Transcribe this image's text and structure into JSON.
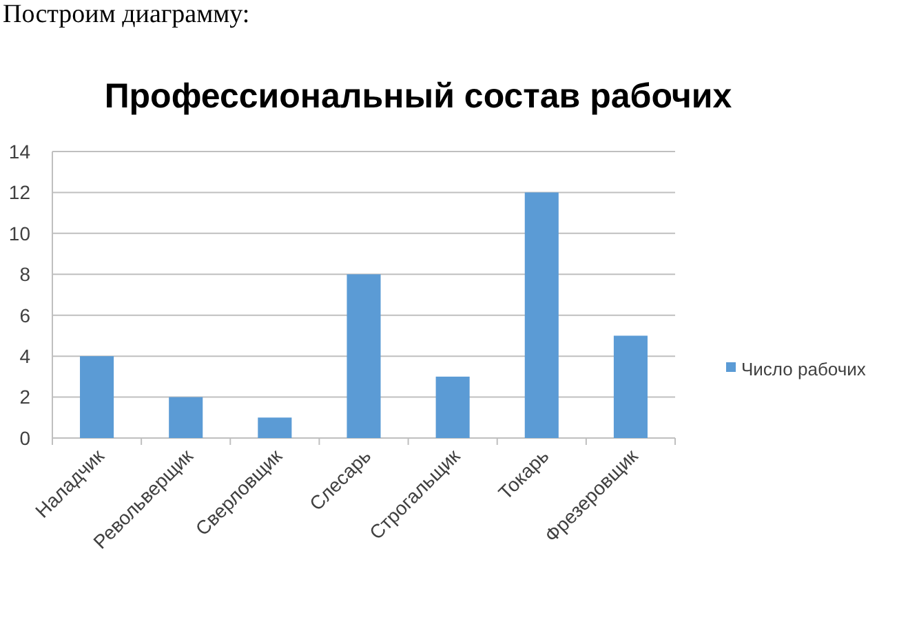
{
  "chart_data": {
    "type": "bar",
    "title": "Профессиональный состав рабочих",
    "annotations": [
      "Построим диаграмму:"
    ],
    "categories": [
      "Наладчик",
      "Револьверщик",
      "Сверловщик",
      "Слесарь",
      "Строгальщик",
      "Токарь",
      "Фрезеровщик"
    ],
    "series": [
      {
        "name": "Число рабочих",
        "color": "#5b9bd5",
        "values": [
          4,
          2,
          1,
          8,
          3,
          12,
          5
        ]
      }
    ],
    "ylim": [
      0,
      14
    ],
    "yticks": [
      0,
      2,
      4,
      6,
      8,
      10,
      12,
      14
    ],
    "grid": "y",
    "legend": "right"
  }
}
